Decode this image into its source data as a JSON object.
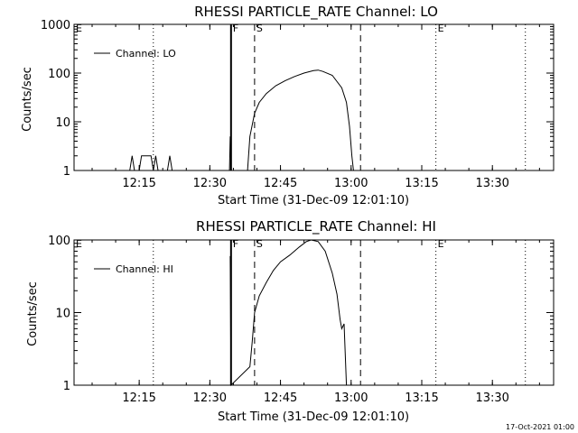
{
  "footer": {
    "timestamp": "17-Oct-2021 01:00"
  },
  "chart_data": [
    {
      "type": "line",
      "title": "RHESSI PARTICLE_RATE Channel: LO",
      "xlabel": "Start Time (31-Dec-09 12:01:10)",
      "ylabel": "Counts/sec",
      "y_scale": "log",
      "ylim": [
        1,
        1000
      ],
      "xlim": [
        "12:01:10",
        "13:43:00"
      ],
      "x_ticks": [
        "12:15",
        "12:30",
        "12:45",
        "13:00",
        "13:15",
        "13:30"
      ],
      "y_ticks": [
        "1",
        "10",
        "100",
        "1000"
      ],
      "legend": {
        "position": "top-left",
        "entries": [
          "Channel: LO"
        ]
      },
      "markers": [
        {
          "label": "E",
          "time": "12:01:10",
          "style": "dotted"
        },
        {
          "label": "F",
          "time": "12:34:30",
          "style": "solid"
        },
        {
          "label": "S",
          "time": "12:39:30",
          "style": "dashed"
        },
        {
          "label": "",
          "time": "13:02:00",
          "style": "dashed"
        },
        {
          "label": "E",
          "time": "13:18:00",
          "style": "dotted"
        },
        {
          "label": "",
          "time": "13:37:00",
          "style": "dotted"
        }
      ],
      "extra_markers": [
        {
          "time": "12:18:00",
          "style": "dotted"
        }
      ],
      "series": [
        {
          "name": "Channel: LO",
          "points": [
            [
              "12:13:00",
              1
            ],
            [
              "12:13:30",
              2
            ],
            [
              "12:14:00",
              1
            ],
            [
              "12:15:00",
              1
            ],
            [
              "12:15:30",
              2
            ],
            [
              "12:17:30",
              2
            ],
            [
              "12:18:00",
              1
            ],
            [
              "12:18:30",
              2
            ],
            [
              "12:19:00",
              1
            ],
            [
              "12:21:00",
              1
            ],
            [
              "12:21:30",
              2
            ],
            [
              "12:22:00",
              1
            ],
            [
              "12:34:10",
              1
            ],
            [
              "12:34:20",
              5
            ],
            [
              "12:34:30",
              1
            ],
            [
              "12:38:00",
              1
            ],
            [
              "12:38:30",
              5
            ],
            [
              "12:39:30",
              15
            ],
            [
              "12:40:30",
              25
            ],
            [
              "12:42:00",
              38
            ],
            [
              "12:44:00",
              55
            ],
            [
              "12:46:00",
              70
            ],
            [
              "12:48:00",
              85
            ],
            [
              "12:50:00",
              100
            ],
            [
              "12:52:00",
              112
            ],
            [
              "12:53:00",
              115
            ],
            [
              "12:54:00",
              108
            ],
            [
              "12:56:00",
              90
            ],
            [
              "12:58:00",
              50
            ],
            [
              "12:59:00",
              25
            ],
            [
              "12:59:40",
              8
            ],
            [
              "13:00:10",
              2
            ],
            [
              "13:00:30",
              1
            ]
          ]
        }
      ]
    },
    {
      "type": "line",
      "title": "RHESSI PARTICLE_RATE Channel: HI",
      "xlabel": "Start Time (31-Dec-09 12:01:10)",
      "ylabel": "Counts/sec",
      "y_scale": "log",
      "ylim": [
        1,
        100
      ],
      "xlim": [
        "12:01:10",
        "13:43:00"
      ],
      "x_ticks": [
        "12:15",
        "12:30",
        "12:45",
        "13:00",
        "13:15",
        "13:30"
      ],
      "y_ticks": [
        "1",
        "10",
        "100"
      ],
      "legend": {
        "position": "top-left",
        "entries": [
          "Channel: HI"
        ]
      },
      "markers": [
        {
          "label": "E",
          "time": "12:01:10",
          "style": "dotted"
        },
        {
          "label": "F",
          "time": "12:34:30",
          "style": "solid"
        },
        {
          "label": "S",
          "time": "12:39:30",
          "style": "dashed"
        },
        {
          "label": "",
          "time": "13:02:00",
          "style": "dashed"
        },
        {
          "label": "E",
          "time": "13:18:00",
          "style": "dotted"
        },
        {
          "label": "",
          "time": "13:37:00",
          "style": "dotted"
        }
      ],
      "extra_markers": [
        {
          "time": "12:18:00",
          "style": "dotted"
        }
      ],
      "series": [
        {
          "name": "Channel: HI",
          "points": [
            [
              "12:34:20",
              60
            ],
            [
              "12:34:30",
              1
            ],
            [
              "12:38:30",
              1.8
            ],
            [
              "12:39:00",
              4
            ],
            [
              "12:39:30",
              10
            ],
            [
              "12:40:30",
              17
            ],
            [
              "12:42:00",
              26
            ],
            [
              "12:43:30",
              38
            ],
            [
              "12:45:00",
              50
            ],
            [
              "12:47:00",
              62
            ],
            [
              "12:49:00",
              80
            ],
            [
              "12:50:30",
              95
            ],
            [
              "12:51:30",
              100
            ],
            [
              "12:53:00",
              95
            ],
            [
              "12:54:30",
              70
            ],
            [
              "12:56:00",
              35
            ],
            [
              "12:57:00",
              18
            ],
            [
              "12:57:40",
              8
            ],
            [
              "12:58:00",
              6
            ],
            [
              "12:58:30",
              7
            ],
            [
              "12:59:00",
              1
            ]
          ]
        }
      ]
    }
  ]
}
